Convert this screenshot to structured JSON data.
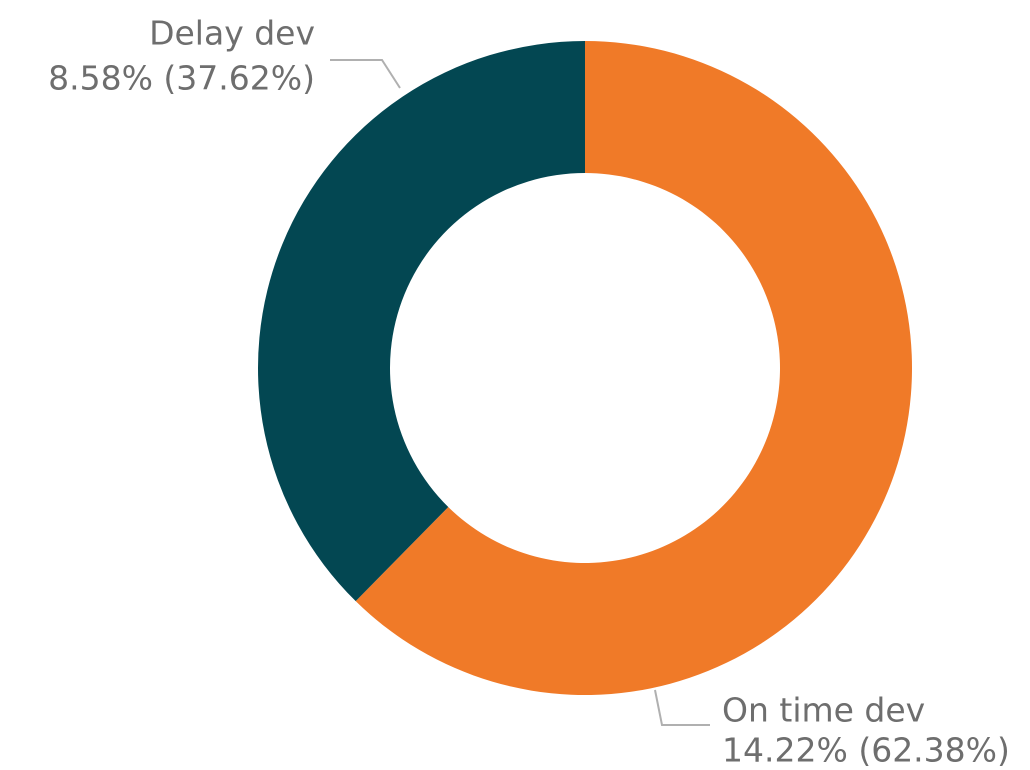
{
  "chart_data": {
    "type": "donut",
    "categories": [
      "On time dev",
      "Delay dev"
    ],
    "values": [
      14.22,
      8.58
    ],
    "value_labels": [
      "14.22% (62.38%)",
      "8.58% (37.62%)"
    ],
    "colors": [
      "#f07a28",
      "#034752"
    ]
  }
}
